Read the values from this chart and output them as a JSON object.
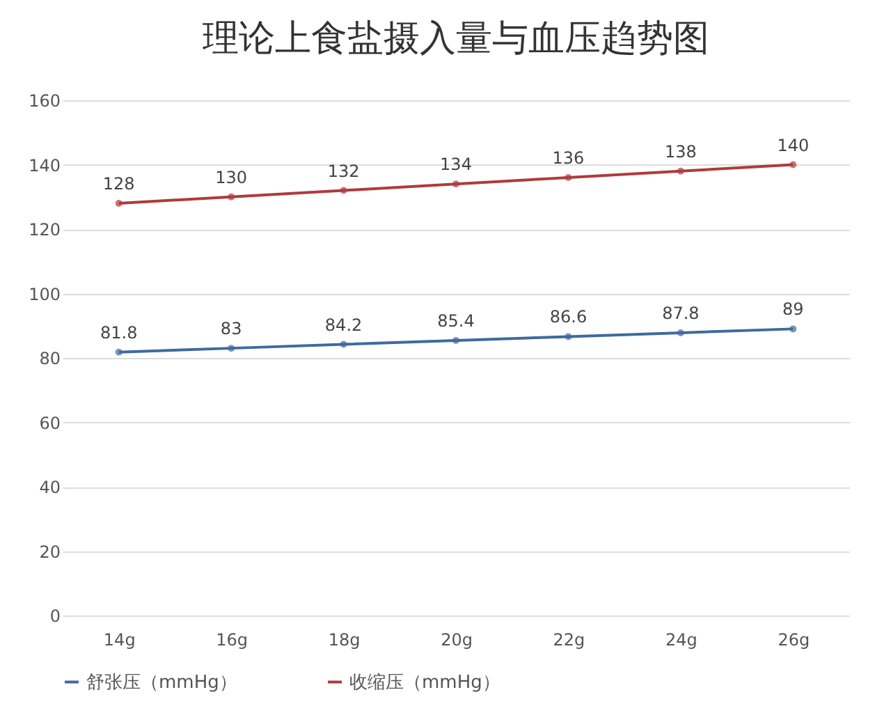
{
  "chart_data": {
    "type": "line",
    "title": "理论上食盐摄入量与血压趋势图",
    "categories": [
      "14g",
      "16g",
      "18g",
      "20g",
      "22g",
      "24g",
      "26g"
    ],
    "series": [
      {
        "name": "舒张压（mmHg）",
        "color": "#3e6aa0",
        "values": [
          81.8,
          83,
          84.2,
          85.4,
          86.6,
          87.8,
          89
        ]
      },
      {
        "name": "收缩压（mmHg）",
        "color": "#b03a3c",
        "values": [
          128,
          130,
          132,
          134,
          136,
          138,
          140
        ]
      }
    ],
    "ylim": [
      0,
      160
    ],
    "yticks": [
      0,
      20,
      40,
      60,
      80,
      100,
      120,
      140,
      160
    ],
    "grid": "y",
    "legend": "bottom",
    "marker": "circle",
    "line_style": "solid",
    "data_labels": true
  }
}
